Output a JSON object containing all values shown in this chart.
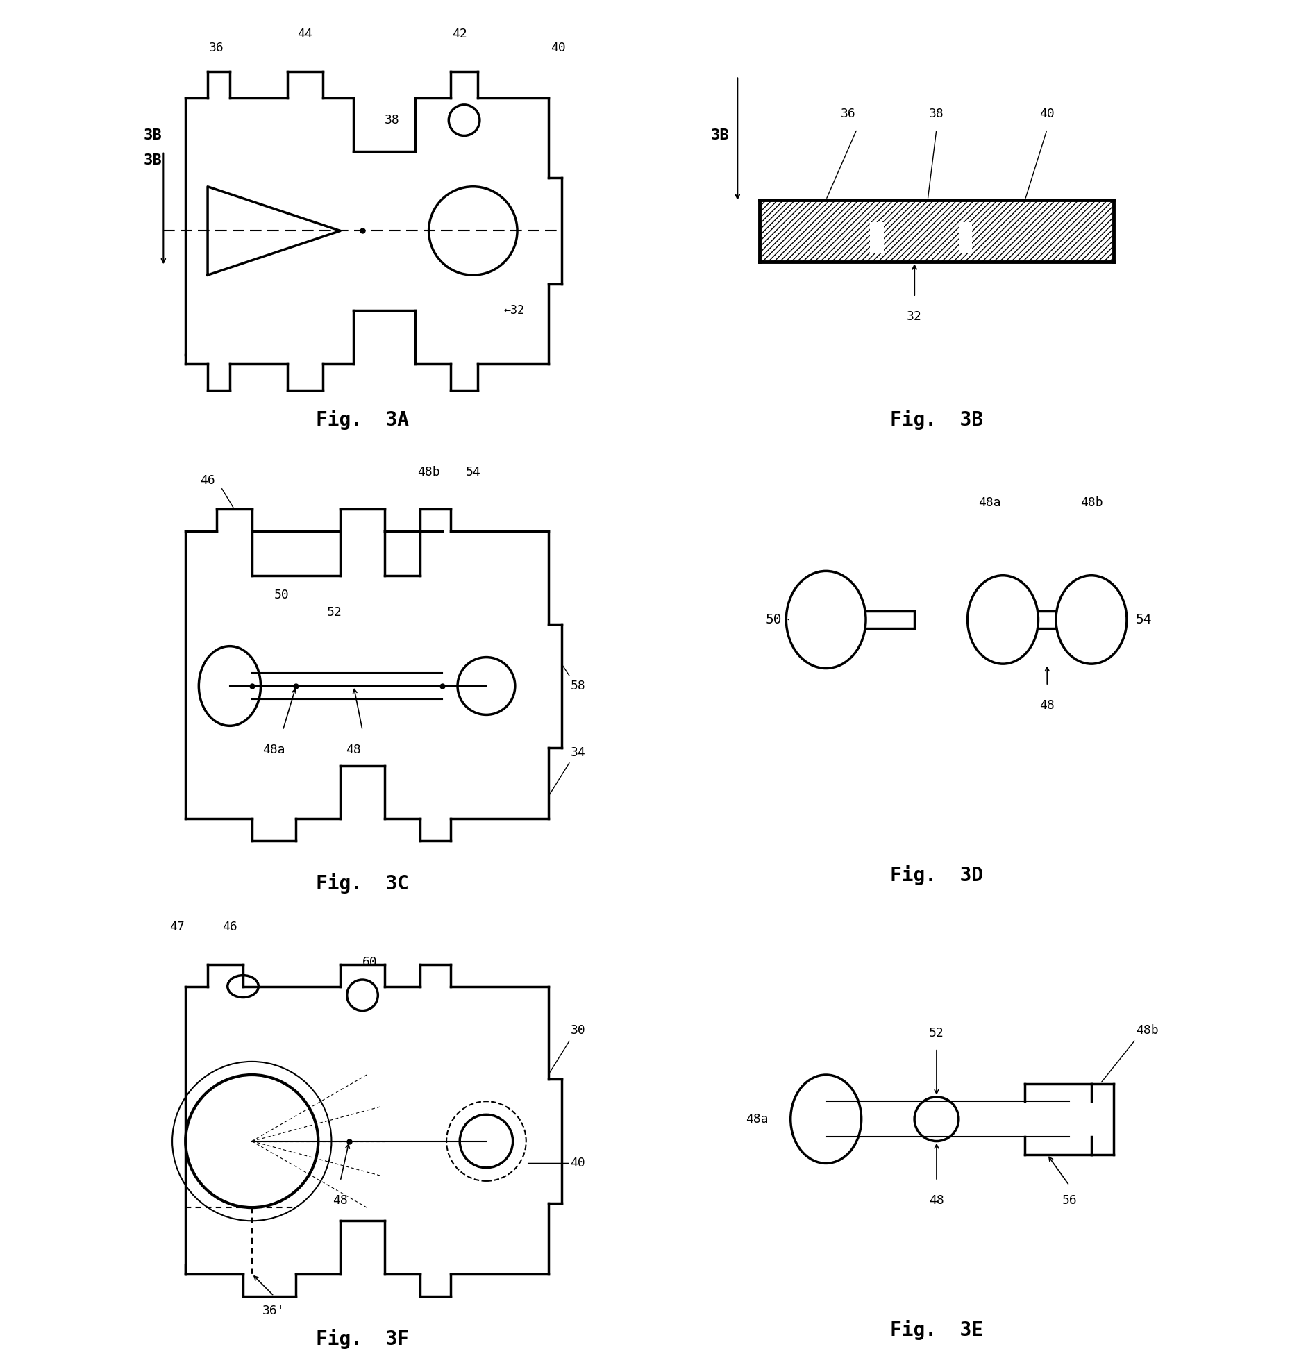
{
  "bg_color": "#ffffff",
  "line_color": "#000000",
  "lw": 2.5,
  "lw_thin": 1.5,
  "fig_width": 18.71,
  "fig_height": 19.76,
  "labels": {
    "fig3A": "Fig.  3A",
    "fig3B": "Fig.  3B",
    "fig3C": "Fig.  3C",
    "fig3D": "Fig.  3D",
    "fig3E": "Fig.  3E",
    "fig3F": "Fig.  3F"
  }
}
